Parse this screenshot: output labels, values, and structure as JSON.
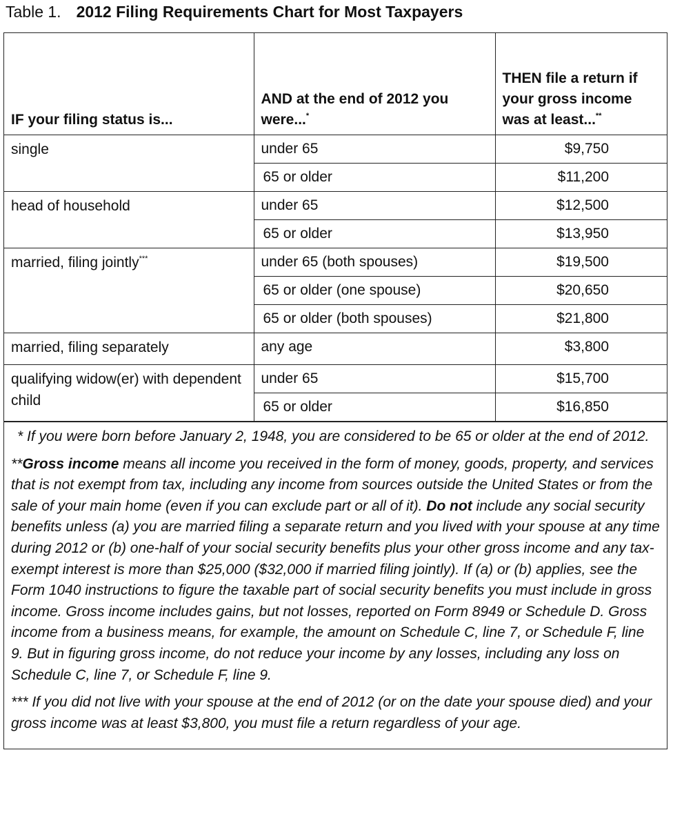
{
  "title": {
    "label": "Table 1.",
    "text": "2012 Filing Requirements Chart for Most Taxpayers"
  },
  "table": {
    "headers": [
      {
        "text": "IF your filing status is..."
      },
      {
        "text": "AND at the end of 2012 you were...",
        "note": "*"
      },
      {
        "text": "THEN file a return if your gross income was at least...",
        "note": "**"
      }
    ],
    "groups": [
      {
        "status": "single",
        "rows": [
          [
            "under 65",
            "$9,750"
          ],
          [
            "65 or older",
            "$11,200"
          ]
        ]
      },
      {
        "status": "head of household",
        "rows": [
          [
            "under 65",
            "$12,500"
          ],
          [
            "65 or older",
            "$13,950"
          ]
        ]
      },
      {
        "status": "married, filing jointly",
        "note": "***",
        "rows": [
          [
            "under 65 (both spouses)",
            "$19,500"
          ],
          [
            "65 or older (one spouse)",
            "$20,650"
          ],
          [
            "65 or older (both spouses)",
            "$21,800"
          ]
        ]
      },
      {
        "status": "married, filing separately",
        "rows": [
          [
            "any age",
            "$3,800"
          ]
        ]
      },
      {
        "status": "qualifying widow(er) with dependent child",
        "rows": [
          [
            "under 65",
            "$15,700"
          ],
          [
            "65 or older",
            "$16,850"
          ]
        ]
      }
    ]
  },
  "footnotes": [
    {
      "segments": [
        {
          "text": "* If you were born before January 2, 1948, you are considered to be 65 or older at the end of 2012."
        }
      ],
      "hanging": true
    },
    {
      "segments": [
        {
          "text": "**"
        },
        {
          "text": "Gross income",
          "bold": true
        },
        {
          "text": " means all income you received in the form of money, goods, property, and services that is not exempt from tax, including any income from sources outside the United States or from the sale of your main home (even if you can exclude part or all of it). "
        },
        {
          "text": "Do not",
          "bold": true
        },
        {
          "text": " include any social security benefits unless (a) you are married filing a separate return and you lived with your spouse at any time during 2012 or (b) one-half of your social security benefits plus your other gross income and any tax-exempt interest is more than $25,000 ($32,000 if married filing jointly). If (a) or (b) applies, see the Form 1040 instructions to figure the taxable part of social security benefits you must include in gross income. Gross income includes gains, but not losses, reported on Form 8949 or Schedule D. Gross income from a business means, for example, the amount on Schedule C, line 7, or Schedule F, line 9. But in figuring gross income, do not reduce your income by any losses, including any loss on Schedule C, line 7, or Schedule F, line 9."
        }
      ]
    },
    {
      "segments": [
        {
          "text": "*** If you did not live with your spouse at the end of 2012 (or on the date your spouse died) and your gross income was at least $3,800, you must file a return regardless of your age."
        }
      ]
    }
  ]
}
